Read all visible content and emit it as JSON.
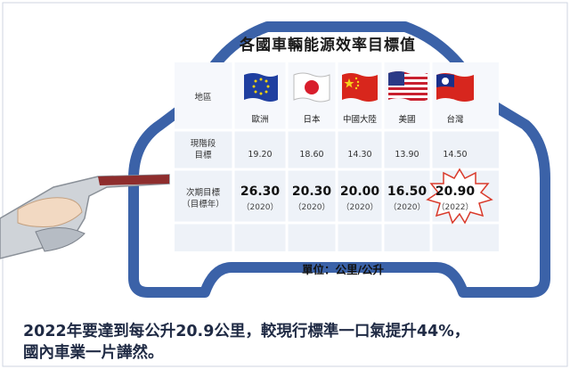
{
  "title": "各國車輛能源效率目標值",
  "row_labels": {
    "region": "地區",
    "current_line1": "現階段",
    "current_line2": "目標",
    "next_line1": "次期目標",
    "next_line2": "（目標年）"
  },
  "regions": [
    {
      "name": "歐洲",
      "current": "19.20",
      "next": "26.30",
      "year": "（2020）"
    },
    {
      "name": "日本",
      "current": "18.60",
      "next": "20.30",
      "year": "（2020）"
    },
    {
      "name": "中國大陸",
      "current": "14.30",
      "next": "20.00",
      "year": "（2020）"
    },
    {
      "name": "美國",
      "current": "13.90",
      "next": "16.50",
      "year": "（2020）"
    },
    {
      "name": "台灣",
      "current": "14.50",
      "next": "20.90",
      "year": "（2022）"
    }
  ],
  "unit": "單位：公里/公升",
  "caption_line1": "2022年要達到每公升20.9公里，較現行標準一口氣提升44%，",
  "caption_line2": "國內車業一片譁然。",
  "colors": {
    "car_outline": "#3b62a8",
    "table_band": "#e6ecf5",
    "caption_text": "#1f2a44",
    "starburst": "#d93a2b"
  },
  "icons": [
    "eu-flag-icon",
    "japan-flag-icon",
    "china-flag-icon",
    "usa-flag-icon",
    "taiwan-flag-icon",
    "fuel-nozzle-icon",
    "starburst-icon"
  ]
}
